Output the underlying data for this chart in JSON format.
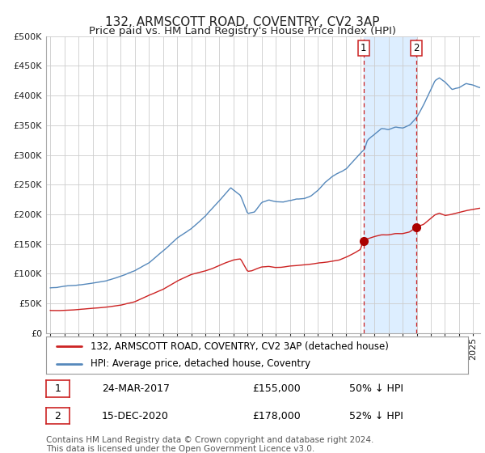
{
  "title": "132, ARMSCOTT ROAD, COVENTRY, CV2 3AP",
  "subtitle": "Price paid vs. HM Land Registry's House Price Index (HPI)",
  "ylim": [
    0,
    500000
  ],
  "yticks": [
    0,
    50000,
    100000,
    150000,
    200000,
    250000,
    300000,
    350000,
    400000,
    450000,
    500000
  ],
  "ytick_labels": [
    "£0",
    "£50K",
    "£100K",
    "£150K",
    "£200K",
    "£250K",
    "£300K",
    "£350K",
    "£400K",
    "£450K",
    "£500K"
  ],
  "xlim_start": 1994.7,
  "xlim_end": 2025.5,
  "hpi_color": "#5588bb",
  "price_color": "#cc2222",
  "marker_color": "#aa0000",
  "bg_color": "#ffffff",
  "grid_color": "#cccccc",
  "shade_color": "#ddeeff",
  "vline_color": "#cc2222",
  "event1_x": 2017.23,
  "event1_y": 155000,
  "event2_x": 2020.96,
  "event2_y": 178000,
  "legend_line1": "132, ARMSCOTT ROAD, COVENTRY, CV2 3AP (detached house)",
  "legend_line2": "HPI: Average price, detached house, Coventry",
  "note1_date": "24-MAR-2017",
  "note1_price": "£155,000",
  "note1_hpi": "50% ↓ HPI",
  "note2_date": "15-DEC-2020",
  "note2_price": "£178,000",
  "note2_hpi": "52% ↓ HPI",
  "footer": "Contains HM Land Registry data © Crown copyright and database right 2024.\nThis data is licensed under the Open Government Licence v3.0.",
  "title_fontsize": 11,
  "subtitle_fontsize": 9.5,
  "tick_fontsize": 8,
  "legend_fontsize": 8.5,
  "note_fontsize": 9,
  "footer_fontsize": 7.5
}
